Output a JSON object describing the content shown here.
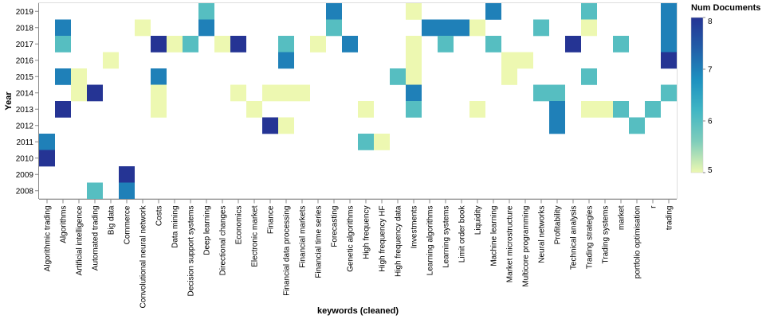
{
  "chart_data": {
    "type": "heatmap",
    "xlabel": "keywords (cleaned)",
    "ylabel": "Year",
    "x_categories": [
      "Algorithmic trading",
      "Algorithms",
      "Artificial intelligence",
      "Automated trading",
      "Big data",
      "Commerce",
      "Convolutional neural network",
      "Costs",
      "Data mining",
      "Decision support systems",
      "Deep learning",
      "Directional changes",
      "Economics",
      "Electronic market",
      "Finance",
      "Financial data processing",
      "Financial markets",
      "Financial time series",
      "Forecasting",
      "Genetic algorithms",
      "High frequency",
      "High frequency HF",
      "High frequency data",
      "Investments",
      "Learning algorithms",
      "Learning systems",
      "Limit order book",
      "Liquidity",
      "Machine learning",
      "Market microstructure",
      "Multicore programming",
      "Neural networks",
      "Profitability",
      "Technical analysis",
      "Trading strategies",
      "Trading systems",
      "market",
      "portfolio optimisation",
      "r",
      "trading"
    ],
    "y_categories": [
      "2019",
      "2018",
      "2017",
      "2016",
      "2015",
      "2014",
      "2013",
      "2012",
      "2011",
      "2010",
      "2009",
      "2008"
    ],
    "color_scale": {
      "domain": [
        5,
        8
      ],
      "range": [
        "#edf8b1",
        "#7fcdbb",
        "#41b6c4",
        "#1d91c0",
        "#225ea8",
        "#253494"
      ]
    },
    "legend": {
      "title": "Num Documents",
      "ticks": [
        8,
        7,
        6,
        5
      ],
      "placement": "top-right"
    },
    "cells": [
      {
        "x": "Deep learning",
        "y": "2019",
        "value": 6
      },
      {
        "x": "Forecasting",
        "y": "2019",
        "value": 7
      },
      {
        "x": "Investments",
        "y": "2019",
        "value": 5
      },
      {
        "x": "Machine learning",
        "y": "2019",
        "value": 7
      },
      {
        "x": "Trading strategies",
        "y": "2019",
        "value": 6
      },
      {
        "x": "trading",
        "y": "2019",
        "value": 7
      },
      {
        "x": "Algorithms",
        "y": "2018",
        "value": 7
      },
      {
        "x": "Convolutional neural network",
        "y": "2018",
        "value": 5
      },
      {
        "x": "Deep learning",
        "y": "2018",
        "value": 7
      },
      {
        "x": "Forecasting",
        "y": "2018",
        "value": 6
      },
      {
        "x": "Learning algorithms",
        "y": "2018",
        "value": 7
      },
      {
        "x": "Learning systems",
        "y": "2018",
        "value": 7
      },
      {
        "x": "Limit order book",
        "y": "2018",
        "value": 7
      },
      {
        "x": "Liquidity",
        "y": "2018",
        "value": 5
      },
      {
        "x": "Neural networks",
        "y": "2018",
        "value": 6
      },
      {
        "x": "Trading strategies",
        "y": "2018",
        "value": 5
      },
      {
        "x": "trading",
        "y": "2018",
        "value": 7
      },
      {
        "x": "Algorithms",
        "y": "2017",
        "value": 6
      },
      {
        "x": "Costs",
        "y": "2017",
        "value": 8
      },
      {
        "x": "Data mining",
        "y": "2017",
        "value": 5
      },
      {
        "x": "Decision support systems",
        "y": "2017",
        "value": 6
      },
      {
        "x": "Directional changes",
        "y": "2017",
        "value": 5
      },
      {
        "x": "Economics",
        "y": "2017",
        "value": 8
      },
      {
        "x": "Financial data processing",
        "y": "2017",
        "value": 6
      },
      {
        "x": "Financial time series",
        "y": "2017",
        "value": 5
      },
      {
        "x": "Genetic algorithms",
        "y": "2017",
        "value": 7
      },
      {
        "x": "Investments",
        "y": "2017",
        "value": 5
      },
      {
        "x": "Learning systems",
        "y": "2017",
        "value": 6
      },
      {
        "x": "Machine learning",
        "y": "2017",
        "value": 6
      },
      {
        "x": "Technical analysis",
        "y": "2017",
        "value": 8
      },
      {
        "x": "market",
        "y": "2017",
        "value": 6
      },
      {
        "x": "trading",
        "y": "2017",
        "value": 7
      },
      {
        "x": "Big data",
        "y": "2016",
        "value": 5
      },
      {
        "x": "Financial data processing",
        "y": "2016",
        "value": 7
      },
      {
        "x": "Investments",
        "y": "2016",
        "value": 5
      },
      {
        "x": "Market microstructure",
        "y": "2016",
        "value": 5
      },
      {
        "x": "Multicore programming",
        "y": "2016",
        "value": 5
      },
      {
        "x": "trading",
        "y": "2016",
        "value": 8
      },
      {
        "x": "Algorithms",
        "y": "2015",
        "value": 7
      },
      {
        "x": "Artificial intelligence",
        "y": "2015",
        "value": 5
      },
      {
        "x": "Costs",
        "y": "2015",
        "value": 7
      },
      {
        "x": "High frequency data",
        "y": "2015",
        "value": 6
      },
      {
        "x": "Investments",
        "y": "2015",
        "value": 5
      },
      {
        "x": "Market microstructure",
        "y": "2015",
        "value": 5
      },
      {
        "x": "Trading strategies",
        "y": "2015",
        "value": 6
      },
      {
        "x": "Artificial intelligence",
        "y": "2014",
        "value": 5
      },
      {
        "x": "Automated trading",
        "y": "2014",
        "value": 8
      },
      {
        "x": "Costs",
        "y": "2014",
        "value": 5
      },
      {
        "x": "Economics",
        "y": "2014",
        "value": 5
      },
      {
        "x": "Finance",
        "y": "2014",
        "value": 5
      },
      {
        "x": "Financial data processing",
        "y": "2014",
        "value": 5
      },
      {
        "x": "Financial markets",
        "y": "2014",
        "value": 5
      },
      {
        "x": "Investments",
        "y": "2014",
        "value": 7
      },
      {
        "x": "Neural networks",
        "y": "2014",
        "value": 6
      },
      {
        "x": "Profitability",
        "y": "2014",
        "value": 6
      },
      {
        "x": "trading",
        "y": "2014",
        "value": 6
      },
      {
        "x": "Algorithms",
        "y": "2013",
        "value": 8
      },
      {
        "x": "Costs",
        "y": "2013",
        "value": 5
      },
      {
        "x": "Electronic market",
        "y": "2013",
        "value": 5
      },
      {
        "x": "High frequency",
        "y": "2013",
        "value": 5
      },
      {
        "x": "Investments",
        "y": "2013",
        "value": 6
      },
      {
        "x": "Liquidity",
        "y": "2013",
        "value": 5
      },
      {
        "x": "Profitability",
        "y": "2013",
        "value": 7
      },
      {
        "x": "Trading strategies",
        "y": "2013",
        "value": 5
      },
      {
        "x": "Trading systems",
        "y": "2013",
        "value": 5
      },
      {
        "x": "market",
        "y": "2013",
        "value": 6
      },
      {
        "x": "r",
        "y": "2013",
        "value": 6
      },
      {
        "x": "Finance",
        "y": "2012",
        "value": 8
      },
      {
        "x": "Financial data processing",
        "y": "2012",
        "value": 5
      },
      {
        "x": "Profitability",
        "y": "2012",
        "value": 7
      },
      {
        "x": "portfolio optimisation",
        "y": "2012",
        "value": 6
      },
      {
        "x": "Algorithmic trading",
        "y": "2011",
        "value": 7
      },
      {
        "x": "High frequency",
        "y": "2011",
        "value": 6
      },
      {
        "x": "High frequency HF",
        "y": "2011",
        "value": 5
      },
      {
        "x": "Algorithmic trading",
        "y": "2010",
        "value": 8
      },
      {
        "x": "Commerce",
        "y": "2009",
        "value": 8
      },
      {
        "x": "Automated trading",
        "y": "2008",
        "value": 6
      },
      {
        "x": "Commerce",
        "y": "2008",
        "value": 7
      }
    ]
  }
}
